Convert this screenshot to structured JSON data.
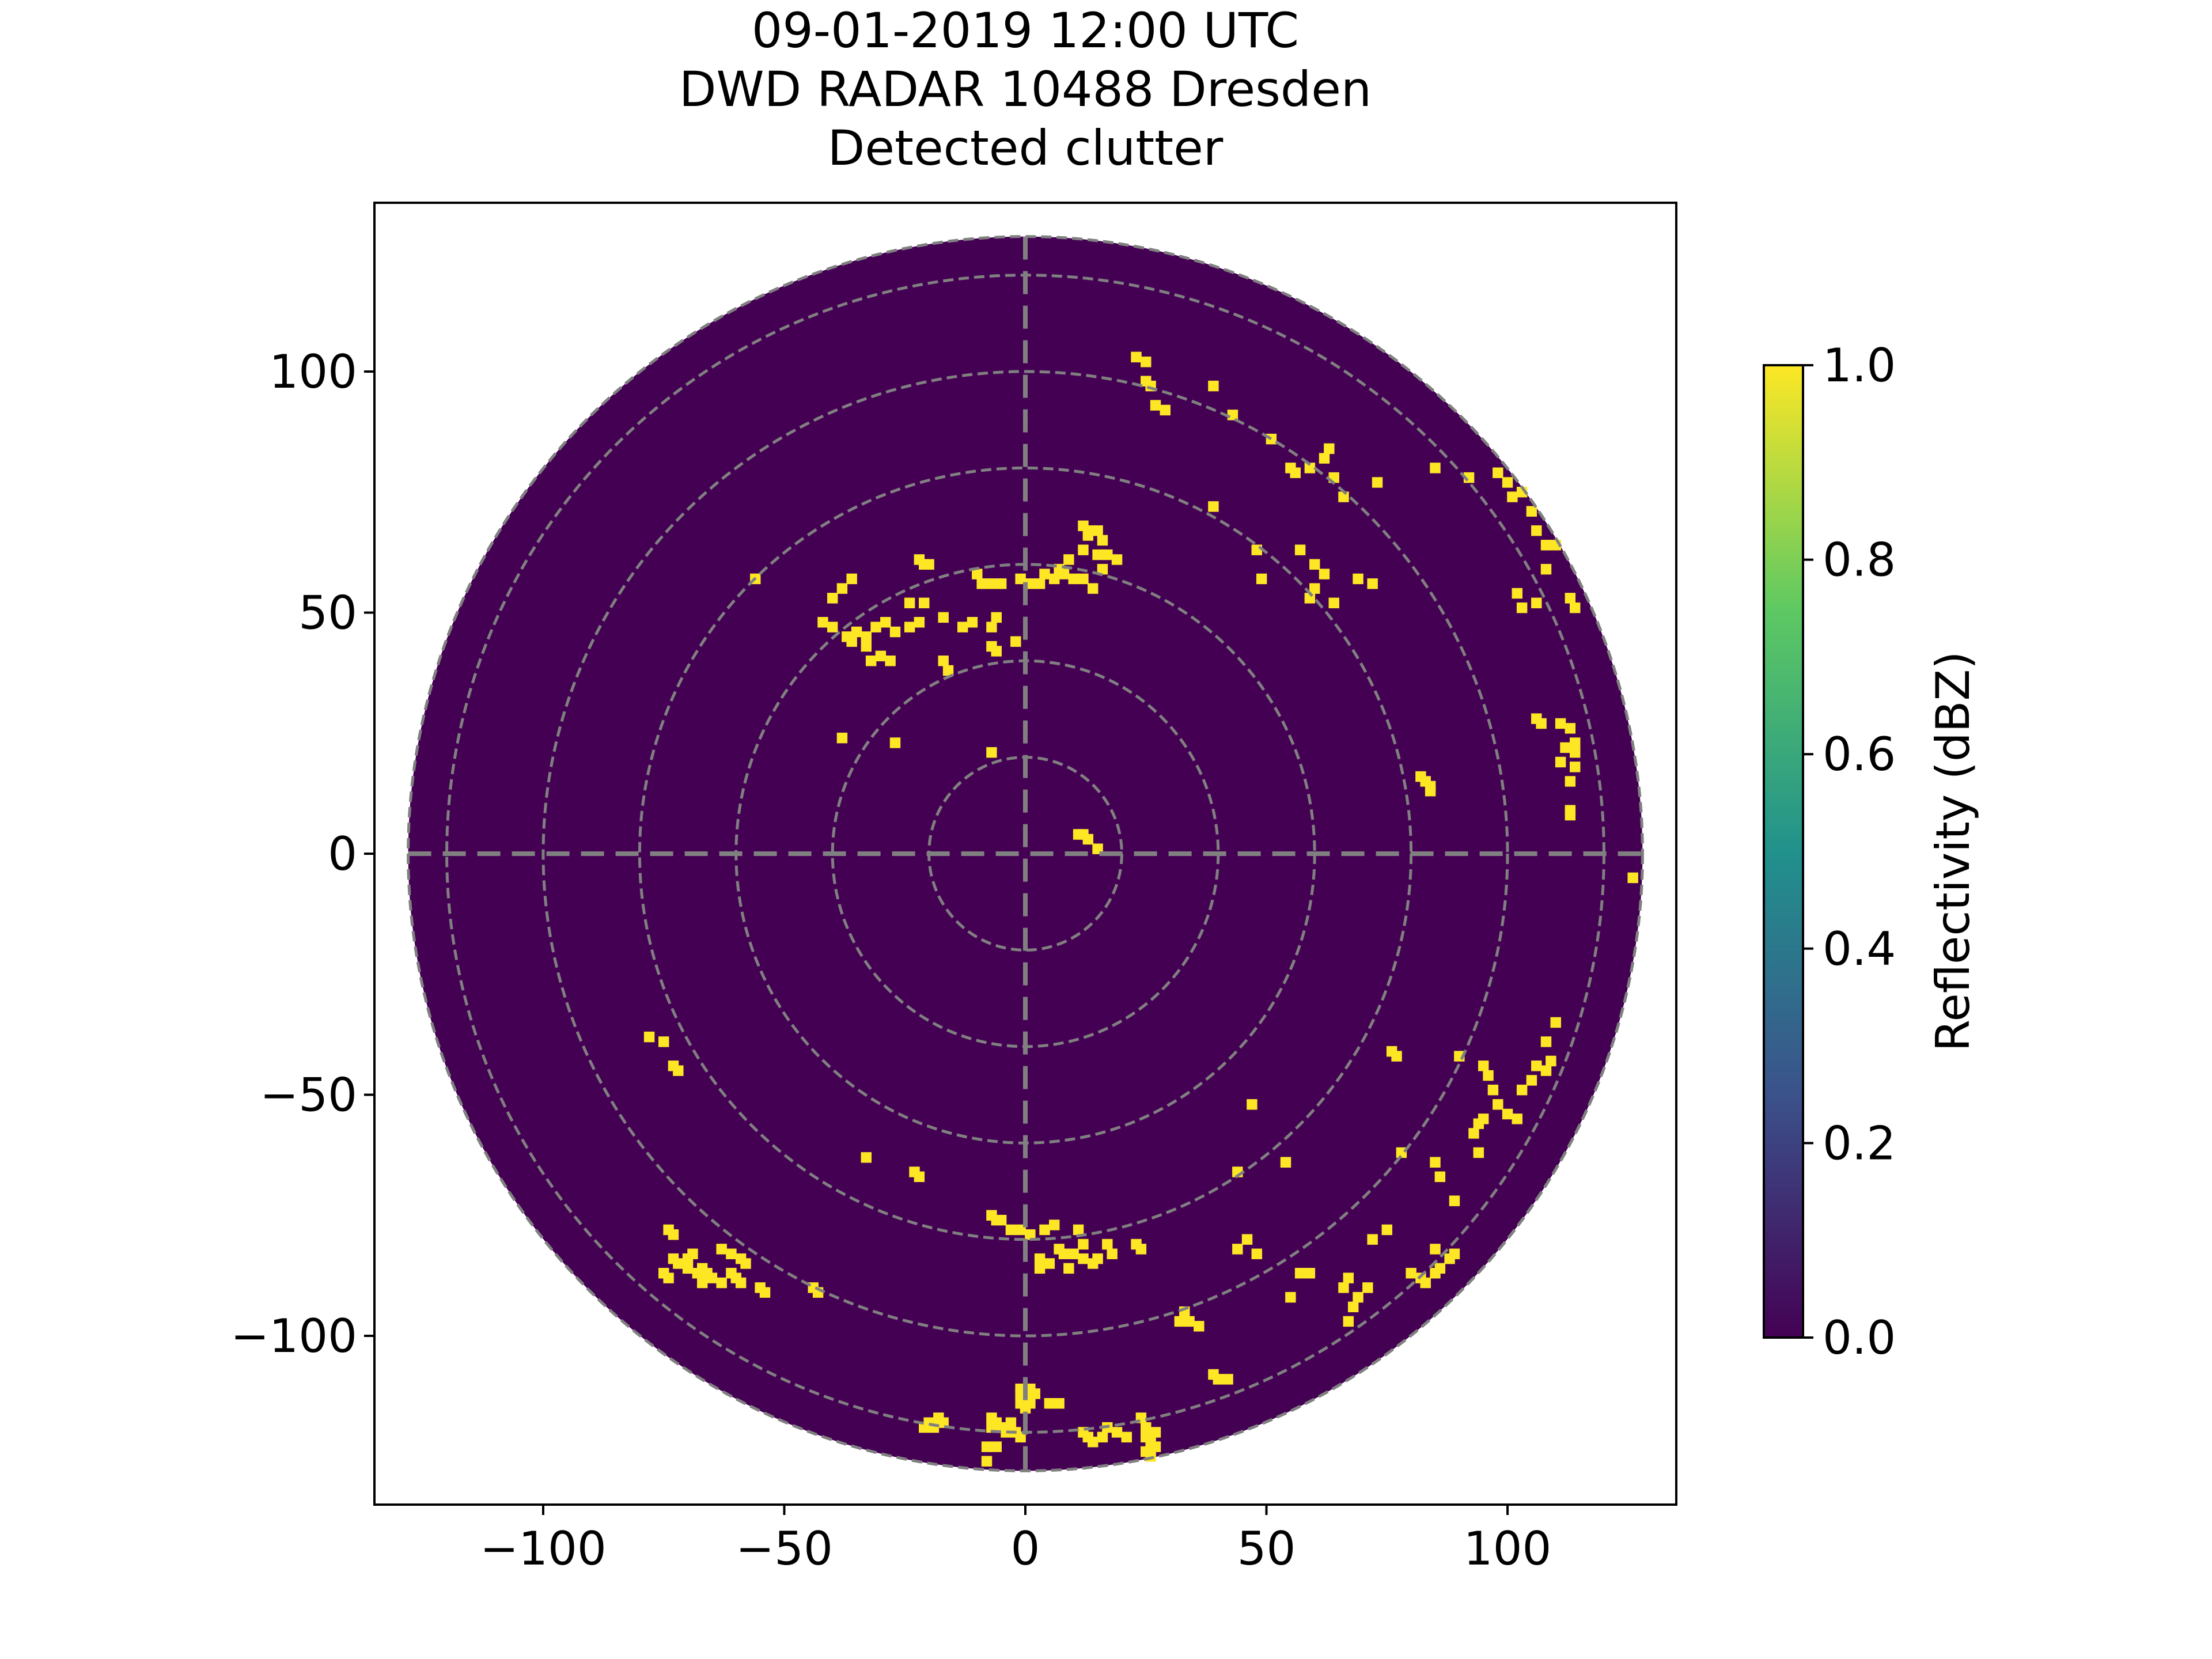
{
  "chart_data": {
    "type": "heatmap",
    "title": [
      "09-01-2019 12:00 UTC",
      "DWD RADAR 10488 Dresden",
      "Detected clutter"
    ],
    "xlim": [
      -135,
      135
    ],
    "ylim": [
      -135,
      135
    ],
    "xticks": [
      -100,
      -50,
      0,
      50,
      100
    ],
    "yticks": [
      -100,
      -50,
      0,
      50,
      100
    ],
    "xtick_labels": [
      "−100",
      "−50",
      "0",
      "50",
      "100"
    ],
    "ytick_labels": [
      "−100",
      "−50",
      "0",
      "50",
      "100"
    ],
    "max_range": 128,
    "range_rings": [
      20,
      40,
      60,
      80,
      100,
      120,
      128
    ],
    "grid": true,
    "grid_color": "#808080",
    "background_value": 0.0,
    "colorbar": {
      "label": "Reflectivity (dBZ)",
      "min": 0.0,
      "max": 1.0,
      "ticks": [
        0.0,
        0.2,
        0.4,
        0.6,
        0.8,
        1.0
      ],
      "tick_labels": [
        "0.0",
        "0.2",
        "0.4",
        "0.6",
        "0.8",
        "1.0"
      ],
      "colormap": "viridis",
      "colors": [
        "#440154",
        "#3b528b",
        "#21918c",
        "#5ec962",
        "#fde725"
      ]
    },
    "clutter_value": 1.0,
    "clutter_color": "#fde725",
    "background_color": "#440154",
    "clutter_points": [
      [
        23,
        103
      ],
      [
        25,
        102
      ],
      [
        25,
        98
      ],
      [
        26,
        97
      ],
      [
        27,
        93
      ],
      [
        29,
        92
      ],
      [
        39,
        97
      ],
      [
        43,
        91
      ],
      [
        51,
        86
      ],
      [
        55,
        80
      ],
      [
        56,
        79
      ],
      [
        59,
        80
      ],
      [
        62,
        82
      ],
      [
        63,
        84
      ],
      [
        64,
        78
      ],
      [
        66,
        74
      ],
      [
        73,
        77
      ],
      [
        85,
        80
      ],
      [
        92,
        78
      ],
      [
        98,
        79
      ],
      [
        100,
        77
      ],
      [
        101,
        74
      ],
      [
        103,
        75
      ],
      [
        105,
        71
      ],
      [
        106,
        67
      ],
      [
        108,
        64
      ],
      [
        110,
        64
      ],
      [
        108,
        59
      ],
      [
        113,
        53
      ],
      [
        114,
        51
      ],
      [
        39,
        72
      ],
      [
        48,
        63
      ],
      [
        49,
        57
      ],
      [
        57,
        63
      ],
      [
        60,
        60
      ],
      [
        62,
        58
      ],
      [
        69,
        57
      ],
      [
        72,
        56
      ],
      [
        102,
        54
      ],
      [
        106,
        52
      ],
      [
        103,
        51
      ],
      [
        60,
        55
      ],
      [
        59,
        53
      ],
      [
        64,
        52
      ],
      [
        12,
        68
      ],
      [
        13,
        66
      ],
      [
        14,
        67
      ],
      [
        15,
        67
      ],
      [
        16,
        65
      ],
      [
        12,
        63
      ],
      [
        15,
        62
      ],
      [
        9,
        61
      ],
      [
        7,
        59
      ],
      [
        8,
        58
      ],
      [
        10,
        57
      ],
      [
        12,
        57
      ],
      [
        14,
        55
      ],
      [
        16,
        59
      ],
      [
        17,
        62
      ],
      [
        19,
        61
      ],
      [
        -22,
        61
      ],
      [
        -21,
        60
      ],
      [
        -20,
        60
      ],
      [
        -10,
        58
      ],
      [
        -9,
        56
      ],
      [
        -8,
        56
      ],
      [
        -6,
        56
      ],
      [
        -5,
        56
      ],
      [
        -1,
        57
      ],
      [
        1,
        56
      ],
      [
        3,
        56
      ],
      [
        4,
        58
      ],
      [
        6,
        57
      ],
      [
        -56,
        57
      ],
      [
        -36,
        57
      ],
      [
        -38,
        55
      ],
      [
        -40,
        53
      ],
      [
        -42,
        48
      ],
      [
        -40,
        47
      ],
      [
        -37,
        45
      ],
      [
        -35,
        46
      ],
      [
        -33,
        45
      ],
      [
        -31,
        47
      ],
      [
        -29,
        48
      ],
      [
        -27,
        46
      ],
      [
        -24,
        47
      ],
      [
        -22,
        48
      ],
      [
        -24,
        52
      ],
      [
        -21,
        52
      ],
      [
        -17,
        49
      ],
      [
        -13,
        47
      ],
      [
        -11,
        48
      ],
      [
        -7,
        47
      ],
      [
        -6,
        49
      ],
      [
        -33,
        43
      ],
      [
        -32,
        40
      ],
      [
        -30,
        41
      ],
      [
        -36,
        44
      ],
      [
        -28,
        40
      ],
      [
        -17,
        40
      ],
      [
        -16,
        38
      ],
      [
        -7,
        43
      ],
      [
        -6,
        42
      ],
      [
        -2,
        44
      ],
      [
        -38,
        24
      ],
      [
        -27,
        23
      ],
      [
        -7,
        21
      ],
      [
        82,
        16
      ],
      [
        83,
        15
      ],
      [
        84,
        14
      ],
      [
        84,
        13
      ],
      [
        106,
        28
      ],
      [
        107,
        27
      ],
      [
        111,
        27
      ],
      [
        113,
        26
      ],
      [
        114,
        23
      ],
      [
        114,
        21
      ],
      [
        114,
        18
      ],
      [
        111,
        19
      ],
      [
        112,
        22
      ],
      [
        113,
        15
      ],
      [
        113,
        9
      ],
      [
        113,
        8
      ],
      [
        126,
        -5
      ],
      [
        11,
        4
      ],
      [
        12,
        4
      ],
      [
        13,
        3
      ],
      [
        15,
        1
      ],
      [
        77,
        -42
      ],
      [
        76,
        -41
      ],
      [
        90,
        -42
      ],
      [
        95,
        -44
      ],
      [
        96,
        -46
      ],
      [
        97,
        -49
      ],
      [
        98,
        -52
      ],
      [
        100,
        -54
      ],
      [
        102,
        -55
      ],
      [
        103,
        -49
      ],
      [
        105,
        -47
      ],
      [
        106,
        -44
      ],
      [
        108,
        -45
      ],
      [
        109,
        -43
      ],
      [
        108,
        -39
      ],
      [
        110,
        -35
      ],
      [
        95,
        -55
      ],
      [
        94,
        -56
      ],
      [
        93,
        -58
      ],
      [
        94,
        -62
      ],
      [
        85,
        -64
      ],
      [
        86,
        -67
      ],
      [
        47,
        -52
      ],
      [
        78,
        -62
      ],
      [
        89,
        -72
      ],
      [
        75,
        -78
      ],
      [
        72,
        -80
      ],
      [
        54,
        -64
      ],
      [
        44,
        -66
      ],
      [
        89,
        -83
      ],
      [
        88,
        -84
      ],
      [
        86,
        -86
      ],
      [
        85,
        -87
      ],
      [
        83,
        -89
      ],
      [
        82,
        -88
      ],
      [
        80,
        -87
      ],
      [
        85,
        -82
      ],
      [
        69,
        -92
      ],
      [
        71,
        -90
      ],
      [
        66,
        -90
      ],
      [
        67,
        -88
      ],
      [
        57,
        -87
      ],
      [
        59,
        -87
      ],
      [
        55,
        -92
      ],
      [
        48,
        -83
      ],
      [
        46,
        -80
      ],
      [
        44,
        -82
      ],
      [
        68,
        -94
      ],
      [
        67,
        -97
      ],
      [
        -69,
        -83
      ],
      [
        -70,
        -84
      ],
      [
        -70,
        -86
      ],
      [
        -68,
        -87
      ],
      [
        -67,
        -86
      ],
      [
        -66,
        -87
      ],
      [
        -65,
        -88
      ],
      [
        -67,
        -89
      ],
      [
        -72,
        -85
      ],
      [
        -73,
        -84
      ],
      [
        -73,
        -79
      ],
      [
        -74,
        -78
      ],
      [
        -63,
        -82
      ],
      [
        -61,
        -83
      ],
      [
        -59,
        -84
      ],
      [
        -58,
        -85
      ],
      [
        -61,
        -87
      ],
      [
        -60,
        -88
      ],
      [
        -59,
        -89
      ],
      [
        -63,
        -89
      ],
      [
        -74,
        -88
      ],
      [
        -75,
        -87
      ],
      [
        -54,
        -91
      ],
      [
        -55,
        -90
      ],
      [
        -44,
        -90
      ],
      [
        -43,
        -91
      ],
      [
        -78,
        -38
      ],
      [
        -75,
        -39
      ],
      [
        -73,
        -44
      ],
      [
        -72,
        -45
      ],
      [
        -33,
        -63
      ],
      [
        -23,
        -66
      ],
      [
        -22,
        -67
      ],
      [
        -7,
        -75
      ],
      [
        -6,
        -76
      ],
      [
        -5,
        -76
      ],
      [
        -3,
        -78
      ],
      [
        -1,
        -78
      ],
      [
        1,
        -79
      ],
      [
        4,
        -78
      ],
      [
        6,
        -77
      ],
      [
        7,
        -82
      ],
      [
        8,
        -83
      ],
      [
        10,
        -83
      ],
      [
        12,
        -84
      ],
      [
        3,
        -84
      ],
      [
        5,
        -85
      ],
      [
        9,
        -86
      ],
      [
        3,
        -86
      ],
      [
        14,
        -85
      ],
      [
        15,
        -84
      ],
      [
        17,
        -81
      ],
      [
        18,
        -83
      ],
      [
        11,
        -78
      ],
      [
        12,
        -81
      ],
      [
        24,
        -82
      ],
      [
        23,
        -81
      ],
      [
        33,
        -95
      ],
      [
        32,
        -97
      ],
      [
        34,
        -97
      ],
      [
        36,
        -98
      ],
      [
        -20,
        -118
      ],
      [
        -19,
        -119
      ],
      [
        -21,
        -119
      ],
      [
        -18,
        -117
      ],
      [
        -17,
        -118
      ],
      [
        -7,
        -117
      ],
      [
        -6,
        -118
      ],
      [
        -7,
        -119
      ],
      [
        -5,
        -119
      ],
      [
        -3,
        -118
      ],
      [
        -4,
        -120
      ],
      [
        -2,
        -120
      ],
      [
        -1,
        -121
      ],
      [
        0,
        -115
      ],
      [
        -1,
        -114
      ],
      [
        1,
        -114
      ],
      [
        1,
        -113
      ],
      [
        -1,
        -112
      ],
      [
        -1,
        -111
      ],
      [
        1,
        -111
      ],
      [
        2,
        -112
      ],
      [
        5,
        -114
      ],
      [
        7,
        -114
      ],
      [
        12,
        -120
      ],
      [
        13,
        -121
      ],
      [
        14,
        -122
      ],
      [
        16,
        -121
      ],
      [
        17,
        -119
      ],
      [
        19,
        -120
      ],
      [
        21,
        -121
      ],
      [
        24,
        -117
      ],
      [
        25,
        -119
      ],
      [
        27,
        -120
      ],
      [
        25,
        -121
      ],
      [
        26,
        -122
      ],
      [
        27,
        -123
      ],
      [
        25,
        -124
      ],
      [
        26,
        -125
      ],
      [
        -8,
        -123
      ],
      [
        -6,
        -123
      ],
      [
        -8,
        -126
      ],
      [
        39,
        -108
      ],
      [
        40,
        -109
      ],
      [
        42,
        -109
      ]
    ]
  }
}
